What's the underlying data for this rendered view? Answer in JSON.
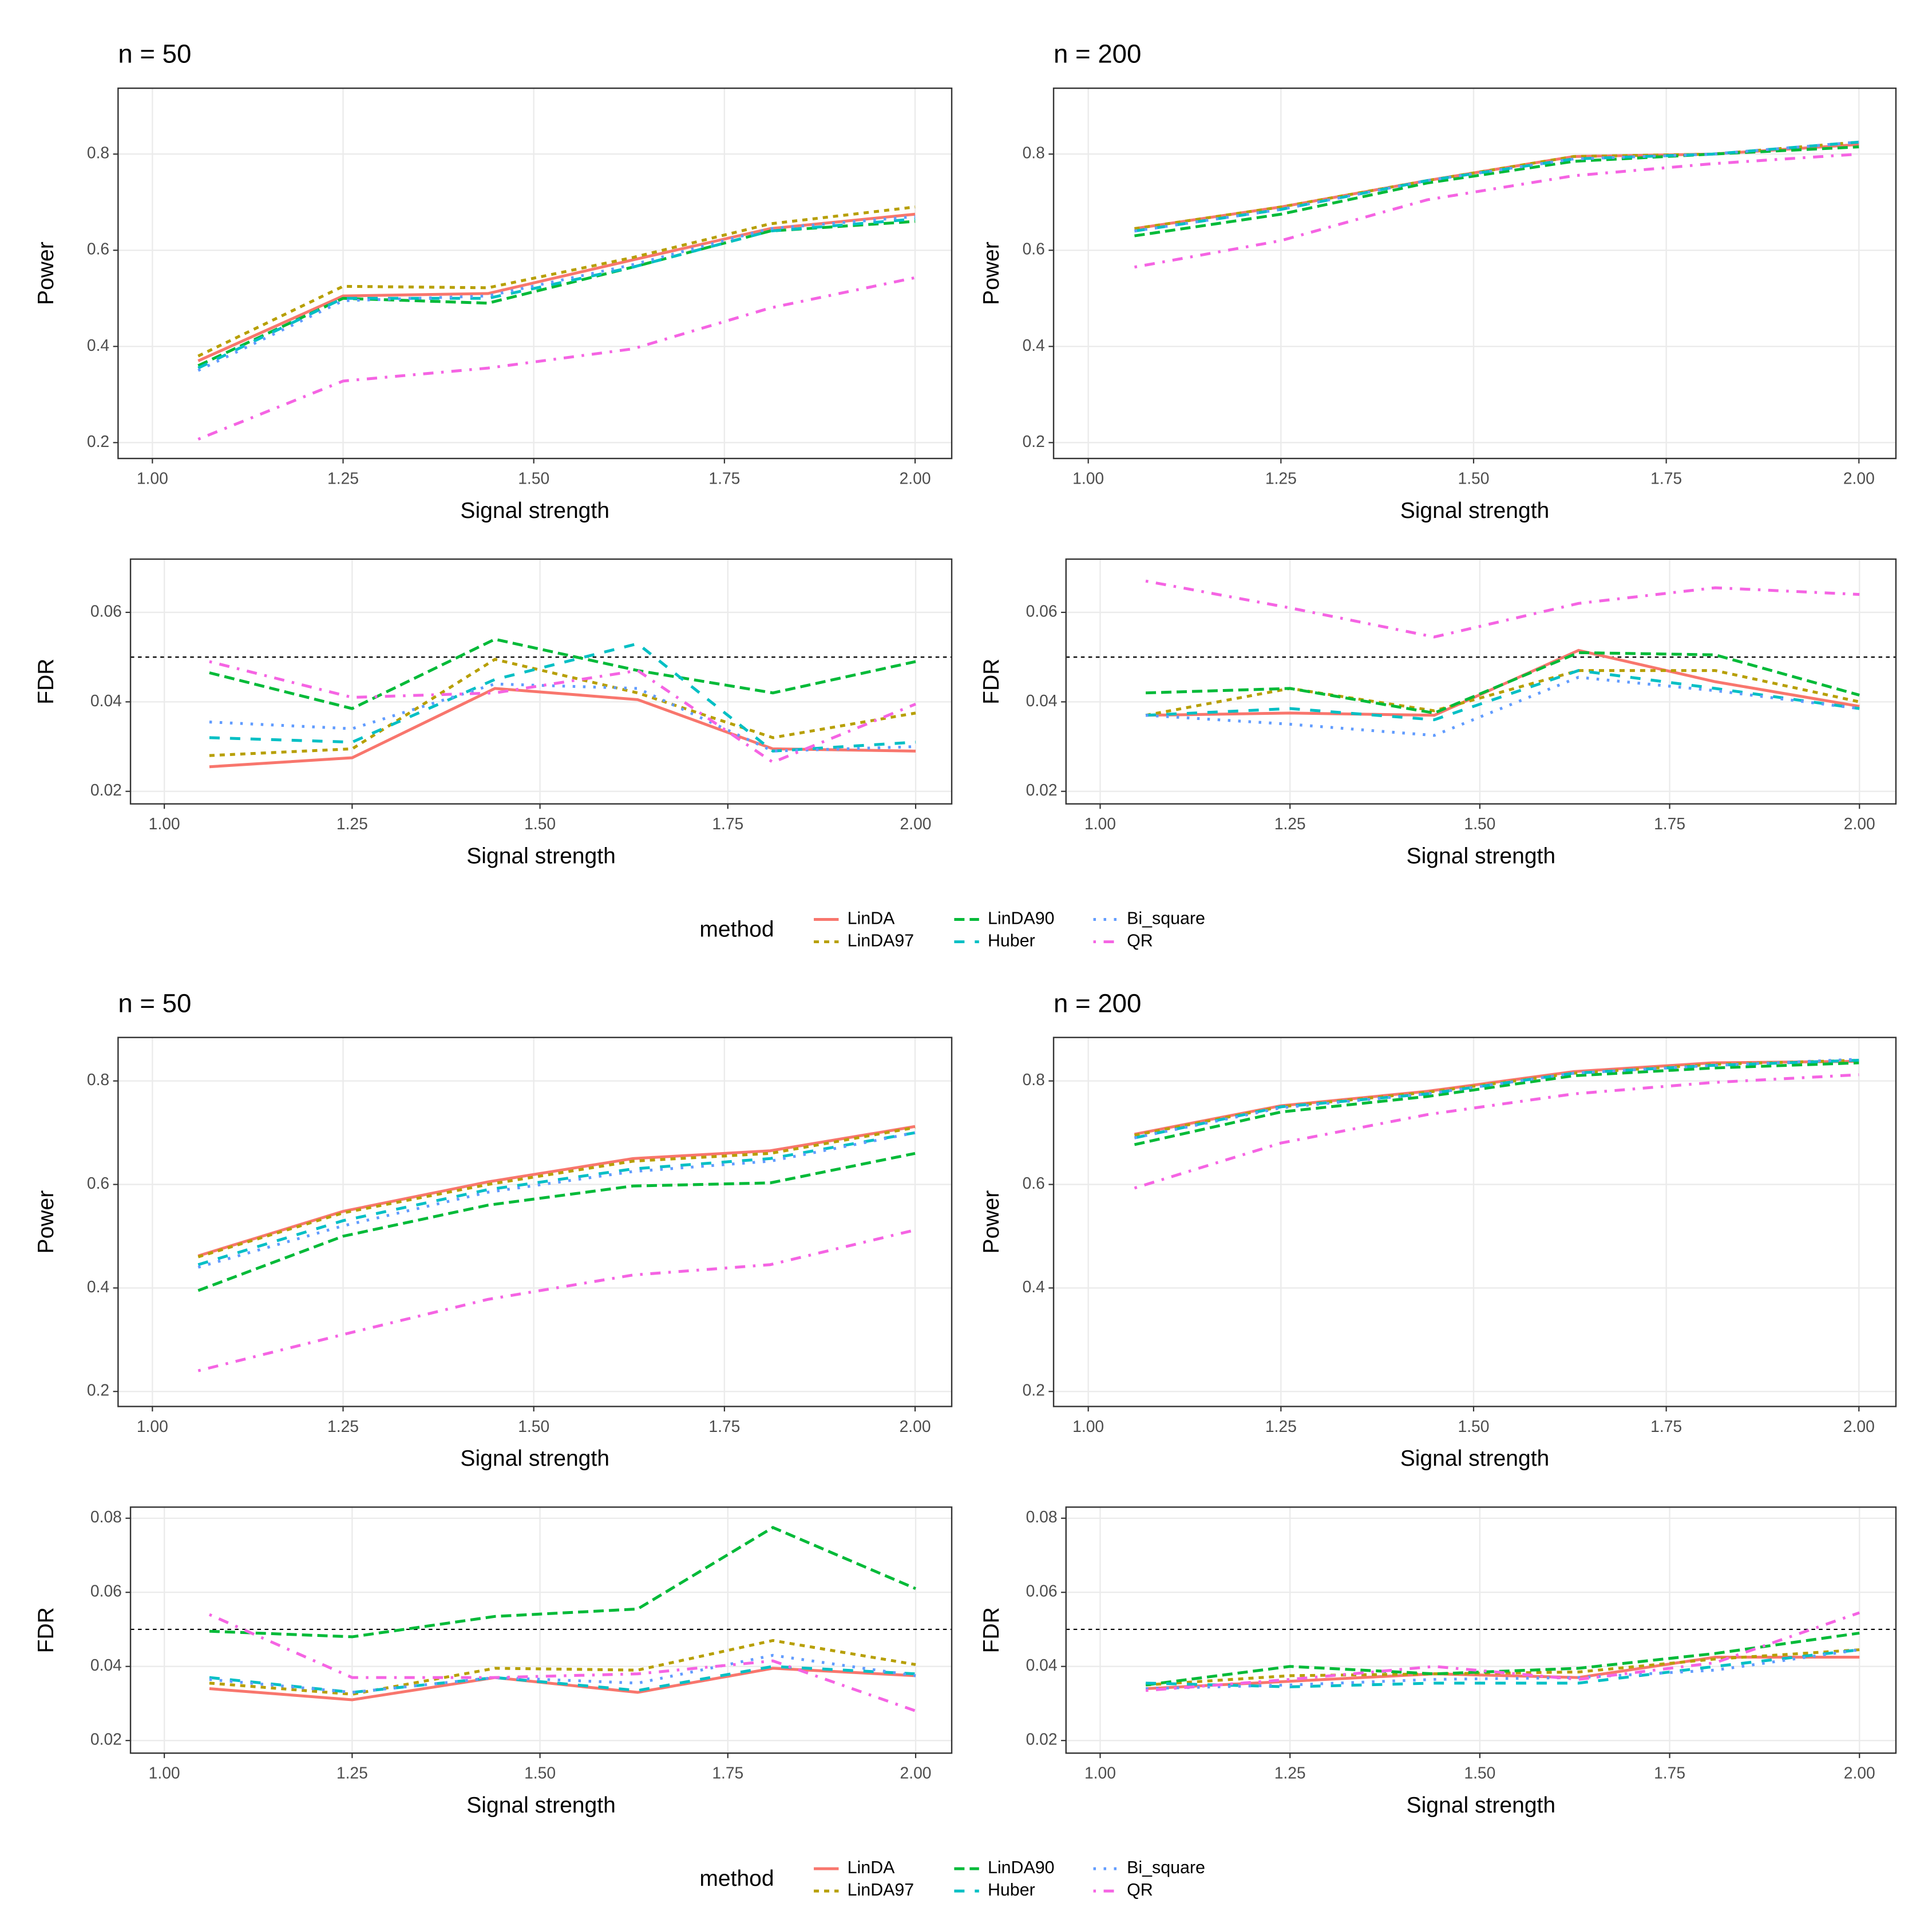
{
  "chart_data": [
    {
      "type": "line",
      "title": "n = 50",
      "xlabel": "Signal strength",
      "ylabel": "Power",
      "legend_title": "method",
      "x": [
        1.06,
        1.25,
        1.44,
        1.63,
        1.81,
        2.0
      ],
      "xlim": [
        0.955,
        2.048
      ],
      "xticks": [
        {
          "value": 1,
          "label": "1.00"
        },
        {
          "value": 1.25,
          "label": "1.25"
        },
        {
          "value": 1.5,
          "label": "1.50"
        },
        {
          "value": 1.75,
          "label": "1.75"
        },
        {
          "value": 2,
          "label": "2.00"
        }
      ],
      "ylim": [
        0.167,
        0.937
      ],
      "yticks": [
        0.2,
        0.4,
        0.6,
        0.8
      ],
      "grid": true,
      "series": [
        {
          "name": "LinDA",
          "color": "#F8766D",
          "linetype": "solid",
          "values": [
            0.37,
            0.505,
            0.51,
            0.58,
            0.645,
            0.675
          ]
        },
        {
          "name": "LinDA97",
          "color": "#B79F00",
          "linetype": "22",
          "values": [
            0.38,
            0.525,
            0.522,
            0.585,
            0.655,
            0.69
          ]
        },
        {
          "name": "LinDA90",
          "color": "#00BA38",
          "linetype": "42",
          "values": [
            0.36,
            0.5,
            0.49,
            0.565,
            0.64,
            0.66
          ]
        },
        {
          "name": "Huber",
          "color": "#00BFC4",
          "linetype": "44",
          "values": [
            0.355,
            0.5,
            0.5,
            0.565,
            0.64,
            0.665
          ]
        },
        {
          "name": "Bi_square",
          "color": "#619CFF",
          "linetype": "13",
          "values": [
            0.35,
            0.495,
            0.505,
            0.57,
            0.645,
            0.67
          ]
        },
        {
          "name": "QR",
          "color": "#F564E3",
          "linetype": "1343",
          "values": [
            0.207,
            0.328,
            0.355,
            0.395,
            0.48,
            0.543
          ]
        }
      ]
    },
    {
      "type": "line",
      "title": "n = 200",
      "xlabel": "Signal strength",
      "ylabel": "Power",
      "x": [
        1.06,
        1.25,
        1.44,
        1.63,
        1.81,
        2.0
      ],
      "xlim": [
        0.955,
        2.048
      ],
      "xticks": [
        {
          "value": 1,
          "label": "1.00"
        },
        {
          "value": 1.25,
          "label": "1.25"
        },
        {
          "value": 1.5,
          "label": "1.50"
        },
        {
          "value": 1.75,
          "label": "1.75"
        },
        {
          "value": 2,
          "label": "2.00"
        }
      ],
      "ylim": [
        0.167,
        0.937
      ],
      "yticks": [
        0.2,
        0.4,
        0.6,
        0.8
      ],
      "grid": true,
      "series": [
        {
          "name": "LinDA",
          "color": "#F8766D",
          "linetype": "solid",
          "values": [
            0.645,
            0.69,
            0.745,
            0.795,
            0.8,
            0.82
          ]
        },
        {
          "name": "LinDA97",
          "color": "#B79F00",
          "linetype": "22",
          "values": [
            0.645,
            0.69,
            0.745,
            0.795,
            0.8,
            0.825
          ]
        },
        {
          "name": "LinDA90",
          "color": "#00BA38",
          "linetype": "42",
          "values": [
            0.63,
            0.675,
            0.74,
            0.785,
            0.8,
            0.815
          ]
        },
        {
          "name": "Huber",
          "color": "#00BFC4",
          "linetype": "44",
          "values": [
            0.64,
            0.685,
            0.745,
            0.79,
            0.8,
            0.825
          ]
        },
        {
          "name": "Bi_square",
          "color": "#619CFF",
          "linetype": "13",
          "values": [
            0.64,
            0.685,
            0.745,
            0.79,
            0.8,
            0.825
          ]
        },
        {
          "name": "QR",
          "color": "#F564E3",
          "linetype": "1343",
          "values": [
            0.565,
            0.62,
            0.705,
            0.755,
            0.78,
            0.8
          ]
        }
      ]
    },
    {
      "type": "line",
      "xlabel": "Signal strength",
      "ylabel": "FDR",
      "hline": 0.05,
      "x": [
        1.06,
        1.25,
        1.44,
        1.63,
        1.81,
        2.0
      ],
      "xlim": [
        0.955,
        2.048
      ],
      "xticks": [
        {
          "value": 1,
          "label": "1.00"
        },
        {
          "value": 1.25,
          "label": "1.25"
        },
        {
          "value": 1.5,
          "label": "1.50"
        },
        {
          "value": 1.75,
          "label": "1.75"
        },
        {
          "value": 2,
          "label": "2.00"
        }
      ],
      "ylim": [
        0.0172,
        0.0719
      ],
      "yticks": [
        0.02,
        0.04,
        0.06
      ],
      "grid": true,
      "series": [
        {
          "name": "LinDA",
          "color": "#F8766D",
          "linetype": "solid",
          "values": [
            0.0255,
            0.0275,
            0.043,
            0.0405,
            0.0295,
            0.029
          ]
        },
        {
          "name": "LinDA97",
          "color": "#B79F00",
          "linetype": "22",
          "values": [
            0.028,
            0.0295,
            0.0495,
            0.042,
            0.032,
            0.0375
          ]
        },
        {
          "name": "LinDA90",
          "color": "#00BA38",
          "linetype": "42",
          "values": [
            0.0465,
            0.0385,
            0.054,
            0.047,
            0.042,
            0.049
          ]
        },
        {
          "name": "Huber",
          "color": "#00BFC4",
          "linetype": "44",
          "values": [
            0.032,
            0.031,
            0.045,
            0.053,
            0.029,
            0.031
          ]
        },
        {
          "name": "Bi_square",
          "color": "#619CFF",
          "linetype": "13",
          "values": [
            0.0355,
            0.034,
            0.044,
            0.043,
            0.029,
            0.03
          ]
        },
        {
          "name": "QR",
          "color": "#F564E3",
          "linetype": "1343",
          "values": [
            0.049,
            0.041,
            0.042,
            0.047,
            0.0265,
            0.0395
          ]
        }
      ]
    },
    {
      "type": "line",
      "xlabel": "Signal strength",
      "ylabel": "FDR",
      "hline": 0.05,
      "x": [
        1.06,
        1.25,
        1.44,
        1.63,
        1.81,
        2.0
      ],
      "xlim": [
        0.955,
        2.048
      ],
      "xticks": [
        {
          "value": 1,
          "label": "1.00"
        },
        {
          "value": 1.25,
          "label": "1.25"
        },
        {
          "value": 1.5,
          "label": "1.50"
        },
        {
          "value": 1.75,
          "label": "1.75"
        },
        {
          "value": 2,
          "label": "2.00"
        }
      ],
      "ylim": [
        0.0172,
        0.0719
      ],
      "yticks": [
        0.02,
        0.04,
        0.06
      ],
      "grid": true,
      "series": [
        {
          "name": "LinDA",
          "color": "#F8766D",
          "linetype": "solid",
          "values": [
            0.037,
            0.0375,
            0.037,
            0.0515,
            0.0445,
            0.039
          ]
        },
        {
          "name": "LinDA97",
          "color": "#B79F00",
          "linetype": "22",
          "values": [
            0.037,
            0.043,
            0.038,
            0.047,
            0.047,
            0.04
          ]
        },
        {
          "name": "LinDA90",
          "color": "#00BA38",
          "linetype": "42",
          "values": [
            0.042,
            0.043,
            0.0375,
            0.051,
            0.0505,
            0.0415
          ]
        },
        {
          "name": "Huber",
          "color": "#00BFC4",
          "linetype": "44",
          "values": [
            0.037,
            0.0385,
            0.036,
            0.047,
            0.043,
            0.0385
          ]
        },
        {
          "name": "Bi_square",
          "color": "#619CFF",
          "linetype": "13",
          "values": [
            0.037,
            0.035,
            0.0325,
            0.0455,
            0.0425,
            0.0385
          ]
        },
        {
          "name": "QR",
          "color": "#F564E3",
          "linetype": "1343",
          "values": [
            0.067,
            0.061,
            0.0545,
            0.062,
            0.0655,
            0.064
          ]
        }
      ]
    },
    {
      "type": "line",
      "title": "n = 50",
      "xlabel": "Signal strength",
      "ylabel": "Power",
      "legend_title": "method",
      "x": [
        1.06,
        1.25,
        1.44,
        1.63,
        1.81,
        2.0
      ],
      "xlim": [
        0.955,
        2.048
      ],
      "xticks": [
        {
          "value": 1,
          "label": "1.00"
        },
        {
          "value": 1.25,
          "label": "1.25"
        },
        {
          "value": 1.5,
          "label": "1.50"
        },
        {
          "value": 1.75,
          "label": "1.75"
        },
        {
          "value": 2,
          "label": "2.00"
        }
      ],
      "ylim": [
        0.171,
        0.884
      ],
      "yticks": [
        0.2,
        0.4,
        0.6,
        0.8
      ],
      "grid": true,
      "series": [
        {
          "name": "LinDA",
          "color": "#F8766D",
          "linetype": "solid",
          "values": [
            0.462,
            0.548,
            0.605,
            0.65,
            0.665,
            0.712
          ]
        },
        {
          "name": "LinDA97",
          "color": "#B79F00",
          "linetype": "22",
          "values": [
            0.46,
            0.545,
            0.6,
            0.645,
            0.66,
            0.71
          ]
        },
        {
          "name": "LinDA90",
          "color": "#00BA38",
          "linetype": "42",
          "values": [
            0.395,
            0.5,
            0.56,
            0.597,
            0.603,
            0.66
          ]
        },
        {
          "name": "Huber",
          "color": "#00BFC4",
          "linetype": "44",
          "values": [
            0.445,
            0.53,
            0.59,
            0.63,
            0.65,
            0.7
          ]
        },
        {
          "name": "Bi_square",
          "color": "#619CFF",
          "linetype": "13",
          "values": [
            0.44,
            0.52,
            0.585,
            0.625,
            0.645,
            0.7
          ]
        },
        {
          "name": "QR",
          "color": "#F564E3",
          "linetype": "1343",
          "values": [
            0.24,
            0.31,
            0.378,
            0.425,
            0.445,
            0.512
          ]
        }
      ]
    },
    {
      "type": "line",
      "title": "n = 200",
      "xlabel": "Signal strength",
      "ylabel": "Power",
      "x": [
        1.06,
        1.25,
        1.44,
        1.63,
        1.81,
        2.0
      ],
      "xlim": [
        0.955,
        2.048
      ],
      "xticks": [
        {
          "value": 1,
          "label": "1.00"
        },
        {
          "value": 1.25,
          "label": "1.25"
        },
        {
          "value": 1.5,
          "label": "1.50"
        },
        {
          "value": 1.75,
          "label": "1.75"
        },
        {
          "value": 2,
          "label": "2.00"
        }
      ],
      "ylim": [
        0.171,
        0.884
      ],
      "yticks": [
        0.2,
        0.4,
        0.6,
        0.8
      ],
      "grid": true,
      "series": [
        {
          "name": "LinDA",
          "color": "#F8766D",
          "linetype": "solid",
          "values": [
            0.697,
            0.752,
            0.78,
            0.818,
            0.835,
            0.838
          ]
        },
        {
          "name": "LinDA97",
          "color": "#B79F00",
          "linetype": "22",
          "values": [
            0.695,
            0.75,
            0.778,
            0.815,
            0.832,
            0.84
          ]
        },
        {
          "name": "LinDA90",
          "color": "#00BA38",
          "linetype": "42",
          "values": [
            0.677,
            0.74,
            0.77,
            0.81,
            0.825,
            0.835
          ]
        },
        {
          "name": "Huber",
          "color": "#00BFC4",
          "linetype": "44",
          "values": [
            0.69,
            0.75,
            0.775,
            0.815,
            0.83,
            0.84
          ]
        },
        {
          "name": "Bi_square",
          "color": "#619CFF",
          "linetype": "13",
          "values": [
            0.69,
            0.748,
            0.775,
            0.815,
            0.83,
            0.842
          ]
        },
        {
          "name": "QR",
          "color": "#F564E3",
          "linetype": "1343",
          "values": [
            0.593,
            0.68,
            0.735,
            0.775,
            0.797,
            0.812
          ]
        }
      ]
    },
    {
      "type": "line",
      "xlabel": "Signal strength",
      "ylabel": "FDR",
      "hline": 0.05,
      "x": [
        1.06,
        1.25,
        1.44,
        1.63,
        1.81,
        2.0
      ],
      "xlim": [
        0.955,
        2.048
      ],
      "xticks": [
        {
          "value": 1,
          "label": "1.00"
        },
        {
          "value": 1.25,
          "label": "1.25"
        },
        {
          "value": 1.5,
          "label": "1.50"
        },
        {
          "value": 1.75,
          "label": "1.75"
        },
        {
          "value": 2,
          "label": "2.00"
        }
      ],
      "ylim": [
        0.0166,
        0.083
      ],
      "yticks": [
        0.02,
        0.04,
        0.06,
        0.08
      ],
      "grid": true,
      "series": [
        {
          "name": "LinDA",
          "color": "#F8766D",
          "linetype": "solid",
          "values": [
            0.034,
            0.031,
            0.037,
            0.033,
            0.0395,
            0.0375
          ]
        },
        {
          "name": "LinDA97",
          "color": "#B79F00",
          "linetype": "22",
          "values": [
            0.0355,
            0.0325,
            0.0395,
            0.039,
            0.047,
            0.0405
          ]
        },
        {
          "name": "LinDA90",
          "color": "#00BA38",
          "linetype": "42",
          "values": [
            0.0495,
            0.048,
            0.0535,
            0.0555,
            0.0775,
            0.061
          ]
        },
        {
          "name": "Huber",
          "color": "#00BFC4",
          "linetype": "44",
          "values": [
            0.037,
            0.033,
            0.037,
            0.0335,
            0.04,
            0.038
          ]
        },
        {
          "name": "Bi_square",
          "color": "#619CFF",
          "linetype": "13",
          "values": [
            0.0365,
            0.033,
            0.037,
            0.0355,
            0.043,
            0.0375
          ]
        },
        {
          "name": "QR",
          "color": "#F564E3",
          "linetype": "1343",
          "values": [
            0.054,
            0.037,
            0.037,
            0.038,
            0.0415,
            0.028
          ]
        }
      ]
    },
    {
      "type": "line",
      "xlabel": "Signal strength",
      "ylabel": "FDR",
      "hline": 0.05,
      "x": [
        1.06,
        1.25,
        1.44,
        1.63,
        1.81,
        2.0
      ],
      "xlim": [
        0.955,
        2.048
      ],
      "xticks": [
        {
          "value": 1,
          "label": "1.00"
        },
        {
          "value": 1.25,
          "label": "1.25"
        },
        {
          "value": 1.5,
          "label": "1.50"
        },
        {
          "value": 1.75,
          "label": "1.75"
        },
        {
          "value": 2,
          "label": "2.00"
        }
      ],
      "ylim": [
        0.0166,
        0.083
      ],
      "yticks": [
        0.02,
        0.04,
        0.06,
        0.08
      ],
      "grid": true,
      "series": [
        {
          "name": "LinDA",
          "color": "#F8766D",
          "linetype": "solid",
          "values": [
            0.034,
            0.036,
            0.038,
            0.037,
            0.0425,
            0.0425
          ]
        },
        {
          "name": "LinDA97",
          "color": "#B79F00",
          "linetype": "22",
          "values": [
            0.035,
            0.0375,
            0.038,
            0.0385,
            0.042,
            0.0445
          ]
        },
        {
          "name": "LinDA90",
          "color": "#00BA38",
          "linetype": "42",
          "values": [
            0.035,
            0.04,
            0.038,
            0.0395,
            0.0435,
            0.049
          ]
        },
        {
          "name": "Huber",
          "color": "#00BFC4",
          "linetype": "44",
          "values": [
            0.0355,
            0.0345,
            0.0355,
            0.0355,
            0.04,
            0.0445
          ]
        },
        {
          "name": "Bi_square",
          "color": "#619CFF",
          "linetype": "13",
          "values": [
            0.034,
            0.035,
            0.0365,
            0.037,
            0.039,
            0.0445
          ]
        },
        {
          "name": "QR",
          "color": "#F564E3",
          "linetype": "1343",
          "values": [
            0.0335,
            0.0365,
            0.04,
            0.0365,
            0.041,
            0.0545
          ]
        }
      ]
    }
  ]
}
